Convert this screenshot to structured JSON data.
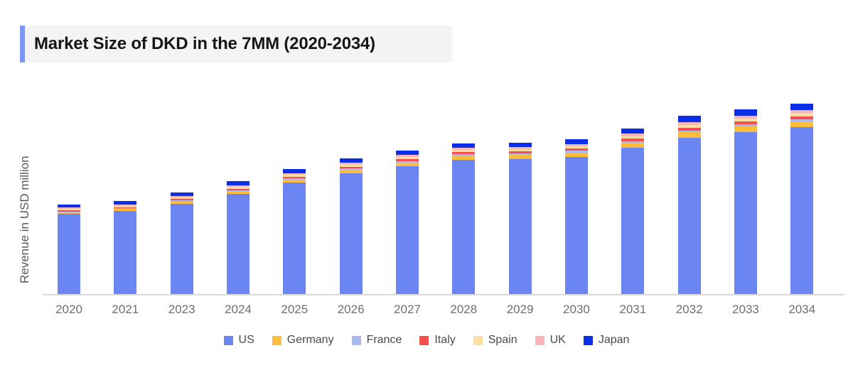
{
  "header": {
    "title": "Market Size of DKD in the 7MM (2020-2034)",
    "accent_color": "#7d97f4",
    "box_background": "#f4f4f4"
  },
  "chart": {
    "y_axis_label": "Revenue in USD million",
    "axis_line_color": "#d9d9d9",
    "tick_label_color": "#6e6e6e"
  },
  "chart_data": {
    "type": "bar",
    "stacked": true,
    "title": "Market Size of DKD in the 7MM (2020-2034)",
    "xlabel": "",
    "ylabel": "Revenue in USD million",
    "grid": false,
    "legend_position": "bottom",
    "y_axis_ticks_visible": false,
    "values_are": "estimated relative units (chart displays no numeric y-axis ticks)",
    "ylim": [
      0,
      300
    ],
    "categories": [
      "2020",
      "2021",
      "2023",
      "2024",
      "2025",
      "2026",
      "2027",
      "2028",
      "2029",
      "2030",
      "2031",
      "2032",
      "2033",
      "2034"
    ],
    "series": [
      {
        "name": "US",
        "color": "#6b86f3",
        "values": [
          113,
          117,
          127,
          141,
          157,
          170,
          180,
          189,
          190,
          193,
          206,
          220,
          228,
          235
        ]
      },
      {
        "name": "Germany",
        "color": "#fcbd3c",
        "values": [
          2.5,
          3,
          3.5,
          4,
          4.5,
          5,
          5.5,
          6,
          6,
          6.5,
          7,
          8,
          8,
          8.5
        ]
      },
      {
        "name": "France",
        "color": "#a8b9f4",
        "values": [
          1,
          1,
          1.5,
          1.5,
          1.5,
          2,
          2,
          2,
          2,
          2.5,
          2.5,
          2.5,
          3,
          3
        ]
      },
      {
        "name": "Italy",
        "color": "#f5504e",
        "values": [
          1.5,
          1.5,
          2,
          2,
          2.5,
          2.5,
          3,
          3,
          3,
          3,
          3.5,
          4,
          4,
          4
        ]
      },
      {
        "name": "Spain",
        "color": "#fbdfa4",
        "values": [
          2,
          2,
          2,
          2.5,
          2.5,
          3,
          3,
          3,
          3,
          3.5,
          3.5,
          4,
          4,
          4.5
        ]
      },
      {
        "name": "UK",
        "color": "#f9b6b9",
        "values": [
          2,
          2,
          2,
          2.5,
          2.5,
          2.5,
          3,
          3,
          3,
          3,
          3.5,
          3.5,
          4,
          4
        ]
      },
      {
        "name": "Japan",
        "color": "#0b2ee8",
        "values": [
          4.5,
          4.5,
          5,
          5.5,
          5.5,
          6,
          6,
          6.5,
          6.5,
          7,
          7.5,
          9,
          9,
          9.5
        ]
      }
    ]
  }
}
